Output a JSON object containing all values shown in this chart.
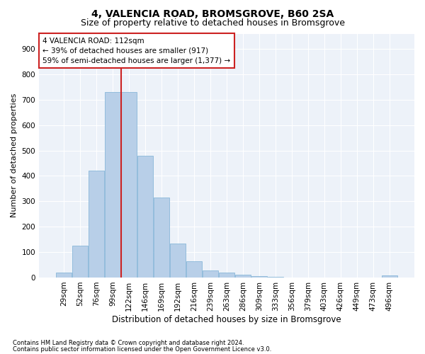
{
  "title": "4, VALENCIA ROAD, BROMSGROVE, B60 2SA",
  "subtitle": "Size of property relative to detached houses in Bromsgrove",
  "xlabel": "Distribution of detached houses by size in Bromsgrove",
  "ylabel": "Number of detached properties",
  "footnote1": "Contains HM Land Registry data © Crown copyright and database right 2024.",
  "footnote2": "Contains public sector information licensed under the Open Government Licence v3.0.",
  "annotation_line1": "4 VALENCIA ROAD: 112sqm",
  "annotation_line2": "← 39% of detached houses are smaller (917)",
  "annotation_line3": "59% of semi-detached houses are larger (1,377) →",
  "bar_color": "#b8cfe8",
  "bar_edge_color": "#7aaed4",
  "vline_color": "#cc2222",
  "annotation_box_edgecolor": "#cc2222",
  "background_color": "#edf2f9",
  "categories": [
    "29sqm",
    "52sqm",
    "76sqm",
    "99sqm",
    "122sqm",
    "146sqm",
    "169sqm",
    "192sqm",
    "216sqm",
    "239sqm",
    "263sqm",
    "286sqm",
    "309sqm",
    "333sqm",
    "356sqm",
    "379sqm",
    "403sqm",
    "426sqm",
    "449sqm",
    "473sqm",
    "496sqm"
  ],
  "bar_heights": [
    20,
    125,
    420,
    730,
    730,
    480,
    315,
    133,
    65,
    27,
    18,
    10,
    5,
    2,
    1,
    1,
    0,
    0,
    0,
    0,
    8
  ],
  "ylim": [
    0,
    960
  ],
  "yticks": [
    0,
    100,
    200,
    300,
    400,
    500,
    600,
    700,
    800,
    900
  ],
  "vline_x": 3.5,
  "title_fontsize": 10,
  "subtitle_fontsize": 9,
  "tick_fontsize": 7.5,
  "ylabel_fontsize": 8,
  "xlabel_fontsize": 8.5,
  "annotation_fontsize": 7.5,
  "footnote_fontsize": 6.0
}
